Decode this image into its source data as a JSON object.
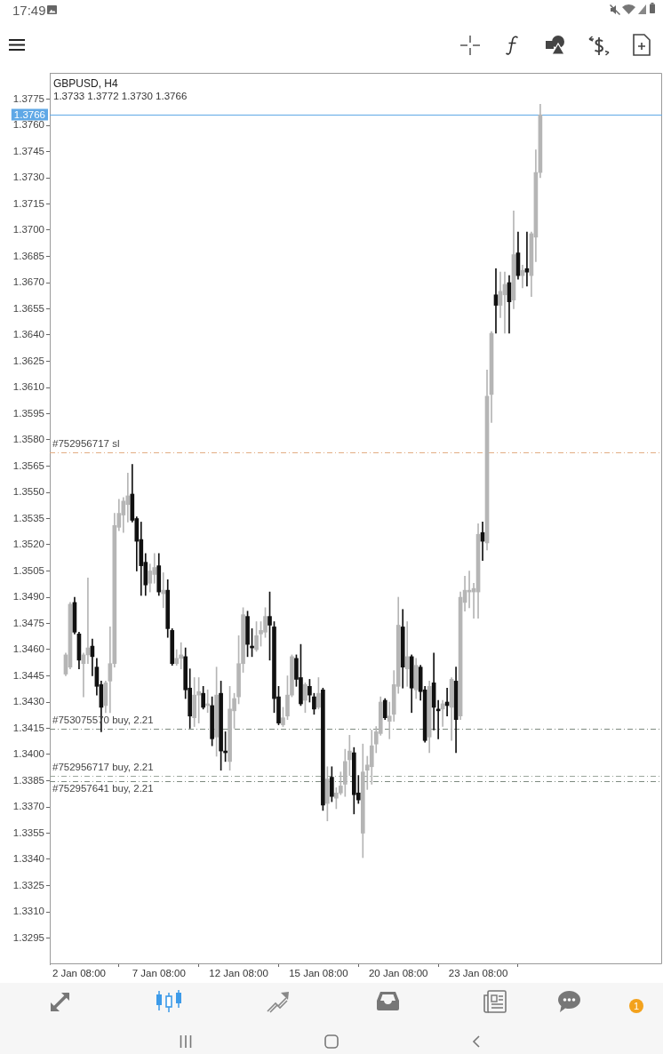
{
  "chart_data": {
    "type": "candlestick",
    "title": "GBPUSD, H4",
    "subtitle": "1.3733 1.3772 1.3730 1.3766",
    "categories": [
      null,
      null,
      null,
      "2 Jan 08:00",
      null,
      null,
      null,
      null,
      null,
      null,
      null,
      null,
      null,
      null,
      null,
      null,
      null,
      null,
      null,
      null,
      null,
      "7 Jan 08:00",
      null,
      null,
      null,
      null,
      null,
      null,
      null,
      null,
      null,
      null,
      null,
      null,
      null,
      null,
      null,
      null,
      null,
      "12 Jan 08:00",
      null,
      null,
      null,
      null,
      null,
      null,
      null,
      null,
      null,
      null,
      null,
      null,
      null,
      null,
      null,
      null,
      null,
      "15 Jan 08:00",
      null,
      null,
      null,
      null,
      null,
      null,
      null,
      null,
      null,
      null,
      null,
      null,
      null,
      null,
      null,
      null,
      null,
      "20 Jan 08:00",
      null,
      null,
      null,
      null,
      null,
      null,
      null,
      null,
      null,
      null,
      null,
      null,
      null,
      null,
      null,
      null,
      null,
      "23 Jan 08:00",
      null,
      null,
      null,
      null,
      null,
      null,
      null,
      null,
      null,
      null,
      null,
      null,
      null,
      null
    ],
    "ohlc": [
      [
        1.3446,
        1.3458,
        1.3445,
        1.3457
      ],
      [
        1.345,
        1.3487,
        1.3449,
        1.3486
      ],
      [
        1.3487,
        1.349,
        1.3469,
        1.347
      ],
      [
        1.3469,
        1.347,
        1.3449,
        1.3454
      ],
      [
        1.3452,
        1.3458,
        1.3433,
        1.3457
      ],
      [
        1.3457,
        1.3501,
        1.3452,
        1.3461
      ],
      [
        1.3462,
        1.3466,
        1.3445,
        1.3456
      ],
      [
        1.345,
        1.3455,
        1.3434,
        1.3439
      ],
      [
        1.344,
        1.3442,
        1.3413,
        1.3427
      ],
      [
        1.3428,
        1.3442,
        1.3424,
        1.3441
      ],
      [
        1.3442,
        1.3473,
        1.3424,
        1.3452
      ],
      [
        1.3452,
        1.3538,
        1.345,
        1.3531
      ],
      [
        1.353,
        1.3546,
        1.3528,
        1.3538
      ],
      [
        1.3537,
        1.3547,
        1.3527,
        1.3545
      ],
      [
        1.3543,
        1.3561,
        1.3533,
        1.3548
      ],
      [
        1.3549,
        1.3566,
        1.3533,
        1.3534
      ],
      [
        1.3535,
        1.3536,
        1.3505,
        1.3522
      ],
      [
        1.3523,
        1.3533,
        1.3491,
        1.3508
      ],
      [
        1.351,
        1.3515,
        1.3491,
        1.3497
      ],
      [
        1.3498,
        1.3509,
        1.3493,
        1.3505
      ],
      [
        1.3503,
        1.3515,
        1.3498,
        1.3507
      ],
      [
        1.3508,
        1.3515,
        1.3491,
        1.3493
      ],
      [
        1.3492,
        1.3504,
        1.3484,
        1.3494
      ],
      [
        1.3494,
        1.35,
        1.3467,
        1.3472
      ],
      [
        1.3471,
        1.3472,
        1.3451,
        1.3452
      ],
      [
        1.3452,
        1.346,
        1.3451,
        1.3455
      ],
      [
        1.3455,
        1.3464,
        1.3449,
        1.3457
      ],
      [
        1.3456,
        1.3461,
        1.3432,
        1.3437
      ],
      [
        1.3438,
        1.3449,
        1.3415,
        1.3422
      ],
      [
        1.3421,
        1.3444,
        1.3416,
        1.3434
      ],
      [
        1.3434,
        1.3444,
        1.3418,
        1.3436
      ],
      [
        1.3435,
        1.3439,
        1.3426,
        1.3427
      ],
      [
        1.3428,
        1.3437,
        1.3424,
        1.3429
      ],
      [
        1.3428,
        1.3433,
        1.3405,
        1.3409
      ],
      [
        1.341,
        1.345,
        1.3399,
        1.3434
      ],
      [
        1.3435,
        1.3442,
        1.3391,
        1.3402
      ],
      [
        1.3402,
        1.3413,
        1.3396,
        1.3401
      ],
      [
        1.3396,
        1.3439,
        1.3391,
        1.3426
      ],
      [
        1.3425,
        1.3435,
        1.3415,
        1.3432
      ],
      [
        1.3433,
        1.3468,
        1.3429,
        1.3452
      ],
      [
        1.3452,
        1.3484,
        1.3447,
        1.348
      ],
      [
        1.3479,
        1.3482,
        1.3456,
        1.3463
      ],
      [
        1.3462,
        1.3472,
        1.3456,
        1.3461
      ],
      [
        1.346,
        1.3476,
        1.3459,
        1.3468
      ],
      [
        1.3469,
        1.3476,
        1.3462,
        1.3471
      ],
      [
        1.347,
        1.3484,
        1.3467,
        1.3479
      ],
      [
        1.3479,
        1.3493,
        1.3454,
        1.3474
      ],
      [
        1.3473,
        1.3476,
        1.3424,
        1.3432
      ],
      [
        1.3433,
        1.3439,
        1.3417,
        1.3418
      ],
      [
        1.3417,
        1.3427,
        1.3416,
        1.3421
      ],
      [
        1.3422,
        1.3445,
        1.342,
        1.3434
      ],
      [
        1.3434,
        1.3457,
        1.3433,
        1.3456
      ],
      [
        1.3455,
        1.3457,
        1.3439,
        1.3443
      ],
      [
        1.3444,
        1.3463,
        1.3428,
        1.3429
      ],
      [
        1.3431,
        1.3441,
        1.3424,
        1.344
      ],
      [
        1.3439,
        1.3443,
        1.343,
        1.3434
      ],
      [
        1.3433,
        1.3435,
        1.3423,
        1.3426
      ],
      [
        1.3427,
        1.3444,
        1.3426,
        1.3435
      ],
      [
        1.3437,
        1.3438,
        1.3368,
        1.3371
      ],
      [
        1.3372,
        1.3393,
        1.3362,
        1.3386
      ],
      [
        1.3387,
        1.3393,
        1.3373,
        1.3376
      ],
      [
        1.3375,
        1.3381,
        1.3369,
        1.3378
      ],
      [
        1.3378,
        1.339,
        1.3377,
        1.3382
      ],
      [
        1.3383,
        1.3403,
        1.3376,
        1.3396
      ],
      [
        1.3397,
        1.3411,
        1.3388,
        1.3402
      ],
      [
        1.3401,
        1.3404,
        1.3366,
        1.3377
      ],
      [
        1.3378,
        1.3388,
        1.3372,
        1.3374
      ],
      [
        1.3355,
        1.3406,
        1.3341,
        1.339
      ],
      [
        1.3391,
        1.3399,
        1.338,
        1.3394
      ],
      [
        1.3393,
        1.3414,
        1.3383,
        1.3405
      ],
      [
        1.3406,
        1.3416,
        1.3401,
        1.3413
      ],
      [
        1.3412,
        1.3433,
        1.3411,
        1.343
      ],
      [
        1.3431,
        1.3432,
        1.342,
        1.3421
      ],
      [
        1.3419,
        1.343,
        1.3409,
        1.3422
      ],
      [
        1.3423,
        1.3448,
        1.3419,
        1.344
      ],
      [
        1.3439,
        1.349,
        1.3435,
        1.3474
      ],
      [
        1.3473,
        1.3483,
        1.3438,
        1.345
      ],
      [
        1.3449,
        1.3476,
        1.3439,
        1.3456
      ],
      [
        1.3456,
        1.3457,
        1.3424,
        1.3438
      ],
      [
        1.3437,
        1.3455,
        1.3432,
        1.3451
      ],
      [
        1.345,
        1.3451,
        1.3431,
        1.3436
      ],
      [
        1.3437,
        1.3439,
        1.3407,
        1.3408
      ],
      [
        1.341,
        1.3442,
        1.3401,
        1.3439
      ],
      [
        1.3441,
        1.3458,
        1.3414,
        1.3427
      ],
      [
        1.3426,
        1.3431,
        1.3409,
        1.3425
      ],
      [
        1.3426,
        1.3431,
        1.3416,
        1.3429
      ],
      [
        1.343,
        1.3438,
        1.3422,
        1.3428
      ],
      [
        1.3427,
        1.3444,
        1.3408,
        1.3443
      ],
      [
        1.3442,
        1.345,
        1.3401,
        1.342
      ],
      [
        1.3422,
        1.3493,
        1.342,
        1.349
      ],
      [
        1.3487,
        1.3502,
        1.3482,
        1.3494
      ],
      [
        1.3493,
        1.3505,
        1.3484,
        1.3494
      ],
      [
        1.3493,
        1.3498,
        1.3478,
        1.3495
      ],
      [
        1.3493,
        1.3532,
        1.3478,
        1.3526
      ],
      [
        1.3527,
        1.3533,
        1.3511,
        1.3522
      ],
      [
        1.3521,
        1.362,
        1.3517,
        1.3605
      ],
      [
        1.3606,
        1.3642,
        1.359,
        1.3641
      ],
      [
        1.3663,
        1.3678,
        1.3641,
        1.3657
      ],
      [
        1.3657,
        1.3676,
        1.365,
        1.3665
      ],
      [
        1.3663,
        1.3676,
        1.3641,
        1.3669
      ],
      [
        1.367,
        1.3674,
        1.3641,
        1.3659
      ],
      [
        1.366,
        1.3711,
        1.3655,
        1.3686
      ],
      [
        1.3687,
        1.3699,
        1.3672,
        1.3674
      ],
      [
        1.3674,
        1.368,
        1.3667,
        1.3677
      ],
      [
        1.3678,
        1.3699,
        1.3668,
        1.3676
      ],
      [
        1.3674,
        1.3699,
        1.3662,
        1.3698
      ],
      [
        1.3696,
        1.3746,
        1.3682,
        1.3733
      ],
      [
        1.3733,
        1.3772,
        1.373,
        1.3766
      ]
    ],
    "ylim": [
      1.328,
      1.379
    ],
    "yticks": [
      {
        "value": 1.3295,
        "label": "1.3295"
      },
      {
        "value": 1.331,
        "label": "1.3310"
      },
      {
        "value": 1.3325,
        "label": "1.3325"
      },
      {
        "value": 1.334,
        "label": "1.3340"
      },
      {
        "value": 1.3355,
        "label": "1.3355"
      },
      {
        "value": 1.337,
        "label": "1.3370"
      },
      {
        "value": 1.3385,
        "label": "1.3385"
      },
      {
        "value": 1.34,
        "label": "1.3400"
      },
      {
        "value": 1.3415,
        "label": "1.3415"
      },
      {
        "value": 1.343,
        "label": "1.3430"
      },
      {
        "value": 1.3445,
        "label": "1.3445"
      },
      {
        "value": 1.346,
        "label": "1.3460"
      },
      {
        "value": 1.3475,
        "label": "1.3475"
      },
      {
        "value": 1.349,
        "label": "1.3490"
      },
      {
        "value": 1.3505,
        "label": "1.3505"
      },
      {
        "value": 1.352,
        "label": "1.3520"
      },
      {
        "value": 1.3535,
        "label": "1.3535"
      },
      {
        "value": 1.355,
        "label": "1.3550"
      },
      {
        "value": 1.3565,
        "label": "1.3565"
      },
      {
        "value": 1.358,
        "label": "1.3580"
      },
      {
        "value": 1.3595,
        "label": "1.3595"
      },
      {
        "value": 1.361,
        "label": "1.3610"
      },
      {
        "value": 1.3625,
        "label": "1.3625"
      },
      {
        "value": 1.364,
        "label": "1.3640"
      },
      {
        "value": 1.3655,
        "label": "1.3655"
      },
      {
        "value": 1.367,
        "label": "1.3670"
      },
      {
        "value": 1.3685,
        "label": "1.3685"
      },
      {
        "value": 1.37,
        "label": "1.3700"
      },
      {
        "value": 1.3715,
        "label": "1.3715"
      },
      {
        "value": 1.373,
        "label": "1.3730"
      },
      {
        "value": 1.3745,
        "label": "1.3745"
      },
      {
        "value": 1.376,
        "label": "1.3760"
      },
      {
        "value": 1.3775,
        "label": "1.3775"
      }
    ],
    "ref_lines": [
      {
        "axis": "y",
        "value": 1.3766,
        "label": "1.3766",
        "color": "#5fa8e6",
        "line_style": "solid"
      },
      {
        "axis": "y",
        "value": 1.3573,
        "label": "#752956717 sl",
        "color": "#e2ad84",
        "line_style": "dashed"
      },
      {
        "axis": "y",
        "value": 1.3415,
        "label": "#753075570 buy, 2.21",
        "color": "#7e8a80",
        "line_style": "dashed"
      },
      {
        "axis": "y",
        "value": 1.3388,
        "label": "#752956717 buy, 2.21",
        "color": "#9aa59c",
        "line_style": "dashed"
      },
      {
        "axis": "y",
        "value": 1.3385,
        "label": "#752957641 buy, 2.21",
        "color": "#7e8a80",
        "line_style": "dashed"
      }
    ],
    "annotations": [
      "17:49",
      "1"
    ]
  }
}
